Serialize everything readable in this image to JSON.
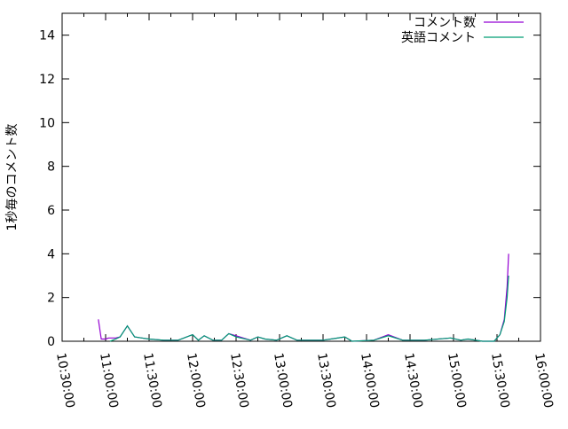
{
  "chart_data": {
    "type": "line",
    "title": "",
    "xlabel": "",
    "ylabel": "1秒毎のコメント数",
    "xlim": [
      "10:30:00",
      "16:00:00"
    ],
    "ylim": [
      0,
      15
    ],
    "xticks": [
      "10:30:00",
      "11:00:00",
      "11:30:00",
      "12:00:00",
      "12:30:00",
      "13:00:00",
      "13:30:00",
      "14:00:00",
      "14:30:00",
      "15:00:00",
      "15:30:00",
      "16:00:00"
    ],
    "yticks": [
      "0",
      "2",
      "4",
      "6",
      "8",
      "10",
      "12",
      "14"
    ],
    "grid": false,
    "legend_position": "top-right",
    "series": [
      {
        "name": "コメント数",
        "color": "#9400d3",
        "x": [
          "10:55",
          "10:57",
          "11:00",
          "11:02",
          "11:07",
          "11:10",
          "11:15",
          "11:20",
          "11:25",
          "11:30",
          "11:40",
          "11:50",
          "12:00",
          "12:04",
          "12:08",
          "12:14",
          "12:20",
          "12:25",
          "12:30",
          "12:40",
          "12:45",
          "12:50",
          "12:58",
          "13:05",
          "13:12",
          "13:30",
          "13:45",
          "13:50",
          "14:05",
          "14:15",
          "14:25",
          "14:40",
          "14:58",
          "15:05",
          "15:10",
          "15:20",
          "15:28",
          "15:32",
          "15:35",
          "15:37",
          "15:38"
        ],
        "y": [
          1.0,
          0.1,
          0.1,
          0.15,
          0.15,
          0.2,
          0.7,
          0.2,
          0.15,
          0.1,
          0.05,
          0.05,
          0.3,
          0.05,
          0.25,
          0.05,
          0.05,
          0.35,
          0.25,
          0.05,
          0.2,
          0.1,
          0.05,
          0.25,
          0.05,
          0.05,
          0.2,
          0.0,
          0.05,
          0.3,
          0.05,
          0.05,
          0.15,
          0.05,
          0.1,
          0.0,
          0.0,
          0.3,
          1.0,
          2.5,
          4.0
        ]
      },
      {
        "name": "英語コメント",
        "color": "#009e73",
        "x": [
          "11:03",
          "11:07",
          "11:10",
          "11:15",
          "11:20",
          "11:25",
          "11:30",
          "11:40",
          "11:50",
          "12:00",
          "12:04",
          "12:08",
          "12:14",
          "12:20",
          "12:25",
          "12:30",
          "12:40",
          "12:45",
          "12:50",
          "12:58",
          "13:05",
          "13:12",
          "13:30",
          "13:45",
          "13:50",
          "14:05",
          "14:15",
          "14:25",
          "14:40",
          "14:58",
          "15:05",
          "15:10",
          "15:20",
          "15:28",
          "15:32",
          "15:35",
          "15:37",
          "15:38"
        ],
        "y": [
          0.0,
          0.1,
          0.2,
          0.7,
          0.2,
          0.15,
          0.1,
          0.05,
          0.05,
          0.3,
          0.05,
          0.25,
          0.05,
          0.05,
          0.35,
          0.2,
          0.05,
          0.2,
          0.1,
          0.05,
          0.25,
          0.05,
          0.05,
          0.2,
          0.0,
          0.05,
          0.25,
          0.05,
          0.05,
          0.15,
          0.05,
          0.1,
          0.0,
          0.0,
          0.3,
          0.9,
          2.0,
          3.0
        ]
      }
    ]
  }
}
